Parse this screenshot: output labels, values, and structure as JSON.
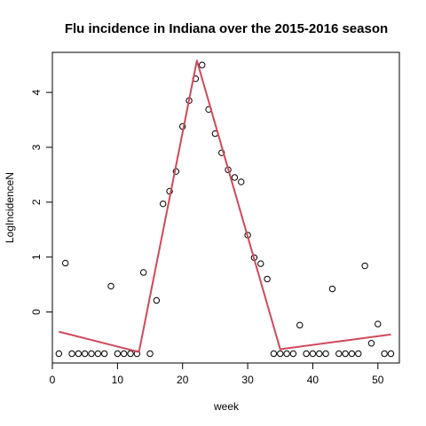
{
  "chart_data": {
    "type": "scatter",
    "title": "Flu incidence in Indiana over the 2015-2016 season",
    "xlabel": "week",
    "ylabel": "LogIncidenceN",
    "xlim": [
      0,
      53.3
    ],
    "ylim": [
      -0.93,
      4.73
    ],
    "x_ticks": [
      0,
      10,
      20,
      30,
      40,
      50
    ],
    "y_ticks": [
      0,
      1,
      2,
      3,
      4
    ],
    "grid": false,
    "colors": {
      "points": "#000000",
      "fit_line": "#d1495b"
    },
    "points": {
      "x": [
        1,
        2,
        3,
        4,
        5,
        6,
        7,
        8,
        9,
        10,
        11,
        12,
        13,
        14,
        15,
        16,
        17,
        18,
        19,
        20,
        21,
        22,
        23,
        24,
        25,
        26,
        27,
        28,
        29,
        30,
        31,
        32,
        33,
        34,
        35,
        36,
        37,
        38,
        39,
        40,
        41,
        42,
        43,
        44,
        45,
        46,
        47,
        48,
        49,
        50,
        51,
        52
      ],
      "y": [
        -0.76,
        0.89,
        -0.76,
        -0.76,
        -0.76,
        -0.76,
        -0.76,
        -0.76,
        0.47,
        -0.76,
        -0.76,
        -0.76,
        -0.76,
        0.72,
        -0.76,
        0.21,
        1.97,
        2.2,
        2.56,
        3.38,
        3.85,
        4.25,
        4.5,
        3.69,
        3.25,
        2.9,
        2.59,
        2.45,
        2.37,
        1.4,
        0.99,
        0.88,
        0.6,
        -0.76,
        -0.76,
        -0.76,
        -0.76,
        -0.24,
        -0.76,
        -0.76,
        -0.76,
        -0.76,
        0.42,
        -0.76,
        -0.76,
        -0.76,
        -0.76,
        0.84,
        -0.57,
        -0.22,
        -0.76,
        -0.76
      ]
    },
    "fit_line": {
      "x": [
        1,
        13.3,
        22.2,
        35,
        52
      ],
      "y": [
        -0.36,
        -0.73,
        4.58,
        -0.68,
        -0.41
      ]
    }
  }
}
